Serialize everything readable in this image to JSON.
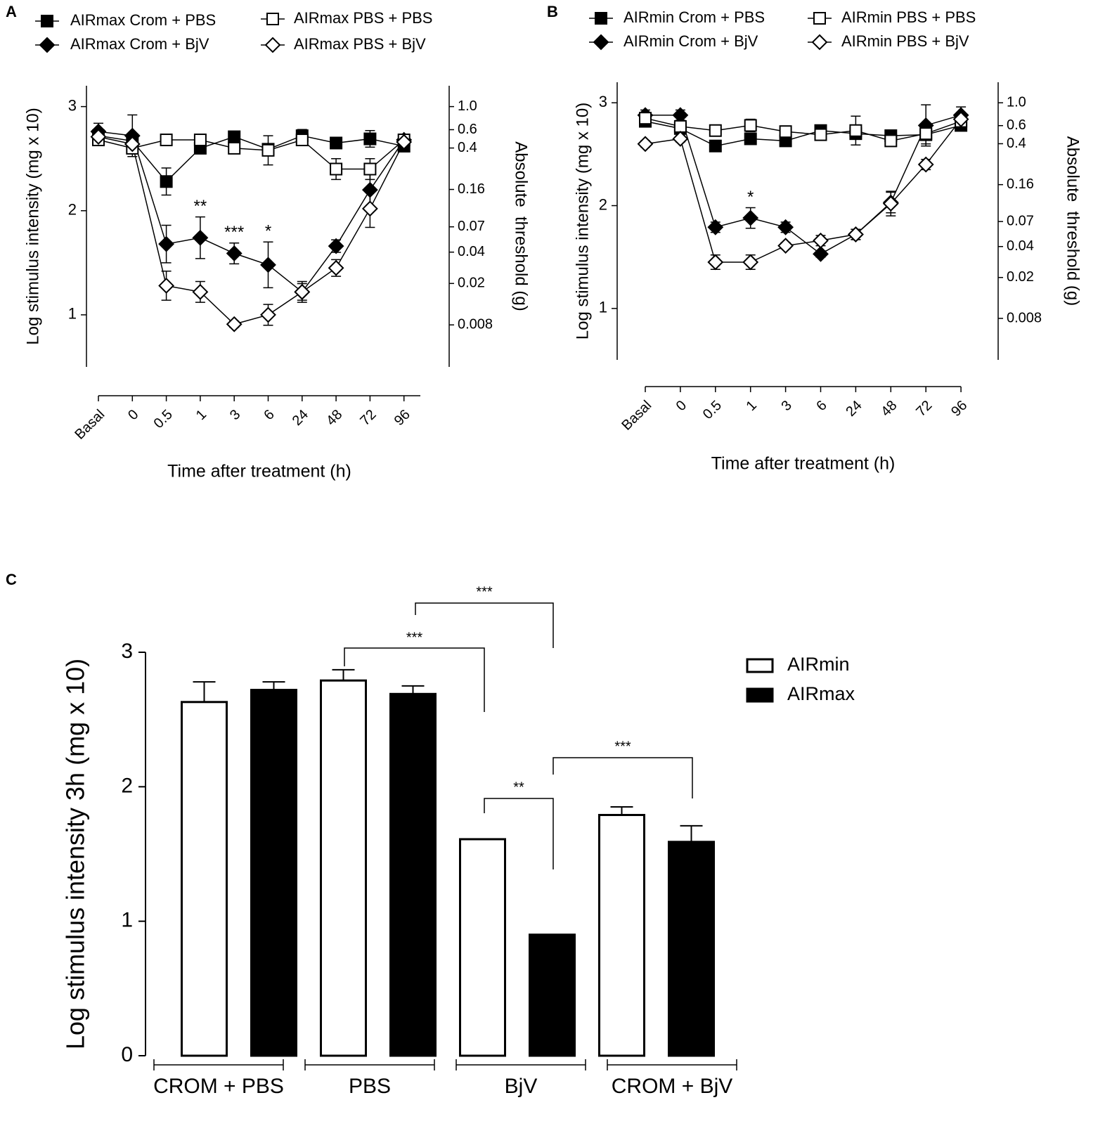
{
  "chart_data": [
    {
      "type": "line",
      "panel": "A",
      "ylabel": "Log stimulus intensity (mg x 10)",
      "y2label": "Absolute  threshold (g)",
      "xlabel": "Time after treatment (h)",
      "categories": [
        "Basal",
        "0",
        "0.5",
        "1",
        "3",
        "6",
        "24",
        "48",
        "72",
        "96"
      ],
      "ylim": [
        0.5,
        3.2
      ],
      "yticks": [
        1,
        2,
        3
      ],
      "y2lim": [
        0.00316,
        1.585
      ],
      "y2log": true,
      "y2ticks": [
        {
          "value": 1.0,
          "label": "1.0"
        },
        0.6,
        0.4,
        0.16,
        0.07,
        0.04,
        0.02,
        0.008
      ],
      "series": [
        {
          "name": "AIRmax Crom + PBS",
          "color": "#000000",
          "marker": "square",
          "filled": true,
          "values": [
            2.72,
            2.67,
            2.28,
            2.6,
            2.71,
            2.59,
            2.72,
            2.65,
            2.69,
            2.62
          ],
          "errors": [
            0.05,
            0.05,
            0.13,
            0.05,
            0.03,
            0.05,
            0.06,
            0.03,
            0.08,
            0.05
          ]
        },
        {
          "name": "AIRmax Crom + BjV",
          "color": "#000000",
          "marker": "diamond",
          "filled": true,
          "values": [
            2.76,
            2.72,
            1.68,
            1.74,
            1.59,
            1.48,
            1.22,
            1.66,
            2.2,
            2.68
          ],
          "errors": [
            0.08,
            0.2,
            0.18,
            0.2,
            0.1,
            0.22,
            0.08,
            0.06,
            0.2,
            0.05
          ]
        },
        {
          "name": "AIRmax PBS + PBS",
          "color": "#000000",
          "marker": "square",
          "filled": false,
          "values": [
            2.68,
            2.6,
            2.68,
            2.68,
            2.6,
            2.58,
            2.68,
            2.4,
            2.4,
            2.68
          ],
          "errors": [
            0.03,
            0.03,
            0.03,
            0.03,
            0.03,
            0.14,
            0.05,
            0.1,
            0.1,
            0.05
          ]
        },
        {
          "name": "AIRmax PBS + BjV",
          "color": "#000000",
          "marker": "diamond",
          "filled": false,
          "values": [
            2.71,
            2.64,
            1.28,
            1.22,
            0.91,
            1.0,
            1.22,
            1.45,
            2.02,
            2.66
          ],
          "errors": [
            0.03,
            0.03,
            0.14,
            0.1,
            0.03,
            0.1,
            0.1,
            0.08,
            0.18,
            0.05
          ]
        }
      ],
      "annotations": [
        {
          "text": "**",
          "at": "1"
        },
        {
          "text": "***",
          "at": "3"
        },
        {
          "text": "*",
          "at": "6"
        }
      ]
    },
    {
      "type": "line",
      "panel": "B",
      "ylabel": "Log stimulus intensity (mg x 10)",
      "y2label": "Absolute  threshold (g)",
      "xlabel": "Time after treatment (h)",
      "categories": [
        "Basal",
        "0",
        "0.5",
        "1",
        "3",
        "6",
        "24",
        "48",
        "72",
        "96"
      ],
      "ylim": [
        0.5,
        3.2
      ],
      "yticks": [
        1,
        2,
        3
      ],
      "y2lim": [
        0.00316,
        1.585
      ],
      "y2log": true,
      "y2ticks": [
        {
          "value": 1.0,
          "label": "1.0"
        },
        0.6,
        0.4,
        0.16,
        0.07,
        0.04,
        0.02,
        0.008
      ],
      "series": [
        {
          "name": "AIRmin Crom + PBS",
          "color": "#000000",
          "marker": "square",
          "filled": true,
          "values": [
            2.82,
            2.75,
            2.58,
            2.65,
            2.63,
            2.73,
            2.7,
            2.68,
            2.69,
            2.78
          ],
          "errors": [
            0.05,
            0.05,
            0.03,
            0.03,
            0.03,
            0.03,
            0.03,
            0.05,
            0.05,
            0.03
          ]
        },
        {
          "name": "AIRmin Crom + BjV",
          "color": "#000000",
          "marker": "diamond",
          "filled": true,
          "values": [
            2.88,
            2.88,
            1.79,
            1.88,
            1.79,
            1.53,
            1.72,
            2.03,
            2.78,
            2.88
          ],
          "errors": [
            0.05,
            0.05,
            0.05,
            0.1,
            0.05,
            0.03,
            0.05,
            0.1,
            0.2,
            0.08
          ]
        },
        {
          "name": "AIRmin PBS + PBS",
          "color": "#000000",
          "marker": "square",
          "filled": false,
          "values": [
            2.85,
            2.77,
            2.73,
            2.78,
            2.72,
            2.69,
            2.73,
            2.63,
            2.7,
            2.82
          ],
          "errors": [
            0.03,
            0.03,
            0.03,
            0.06,
            0.03,
            0.03,
            0.14,
            0.05,
            0.1,
            0.03
          ]
        },
        {
          "name": "AIRmin PBS + BjV",
          "color": "#000000",
          "marker": "diamond",
          "filled": false,
          "values": [
            2.6,
            2.65,
            1.45,
            1.45,
            1.61,
            1.66,
            1.72,
            2.02,
            2.4,
            2.84
          ],
          "errors": [
            0.03,
            0.03,
            0.07,
            0.07,
            0.03,
            0.05,
            0.05,
            0.12,
            0.05,
            0.03
          ]
        }
      ],
      "annotations": [
        {
          "text": "*",
          "at": "1"
        }
      ]
    },
    {
      "type": "bar",
      "panel": "C",
      "ylabel": "Log stimulus intensity 3h (mg x 10)",
      "categories": [
        "CROM + PBS",
        "PBS",
        "BjV",
        "CROM + BjV"
      ],
      "ylim": [
        0,
        3
      ],
      "yticks": [
        0,
        1,
        2,
        3
      ],
      "series": [
        {
          "name": "AIRmin",
          "color": "#ffffff",
          "values": [
            2.63,
            2.79,
            1.61,
            1.79
          ],
          "errors": [
            0.15,
            0.08,
            null,
            0.06
          ]
        },
        {
          "name": "AIRmax",
          "color": "#000000",
          "values": [
            2.72,
            2.69,
            0.9,
            1.59
          ],
          "errors": [
            0.06,
            0.06,
            null,
            0.12
          ]
        }
      ],
      "annotations": [
        {
          "text": "***"
        },
        {
          "text": "***"
        },
        {
          "text": "**"
        },
        {
          "text": "***"
        }
      ]
    }
  ]
}
